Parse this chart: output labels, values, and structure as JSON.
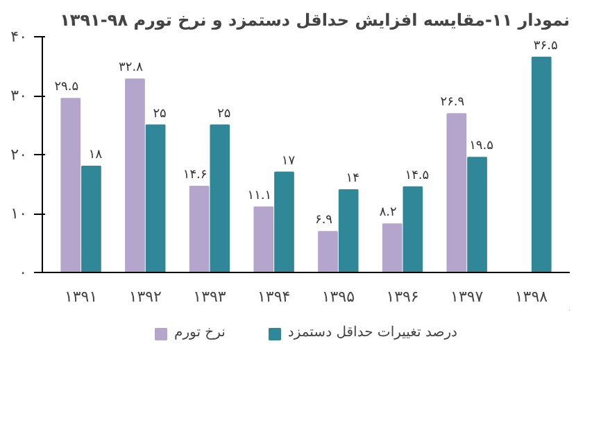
{
  "chart_data": {
    "type": "bar",
    "title": "نمودار ۱۱-مقایسه افزایش حداقل دستمزد و نرخ تورم ۹۸-۱۳۹۱",
    "categories": [
      "۱۳۹۱",
      "۱۳۹۲",
      "۱۳۹۳",
      "۱۳۹۴",
      "۱۳۹۵",
      "۱۳۹۶",
      "۱۳۹۷",
      "۱۳۹۸"
    ],
    "series": [
      {
        "name": "نرخ تورم",
        "color": "#b3a5cb",
        "values": [
          29.5,
          32.8,
          14.6,
          11.1,
          6.9,
          8.2,
          26.9,
          null
        ],
        "value_labels": [
          "۲۹.۵",
          "۳۲.۸",
          "۱۴.۶",
          "۱۱.۱",
          "۶.۹",
          "۸.۲",
          "۲۶.۹",
          null
        ]
      },
      {
        "name": "درصد تغییرات حداقل دستمزد",
        "color": "#2f8797",
        "values": [
          18,
          25,
          25,
          17,
          14,
          14.5,
          19.5,
          36.5
        ],
        "value_labels": [
          "۱۸",
          "۲۵",
          "۲۵",
          "۱۷",
          "۱۴",
          "۱۴.۵",
          "۱۹.۵",
          "۳۶.۵"
        ]
      }
    ],
    "ylim": [
      0,
      40
    ],
    "yticks": [
      {
        "value": 0,
        "label": "۰"
      },
      {
        "value": 10,
        "label": "۱۰"
      },
      {
        "value": 20,
        "label": "۲۰"
      },
      {
        "value": 30,
        "label": "۳۰"
      },
      {
        "value": 40,
        "label": "۴۰"
      }
    ],
    "grid": false,
    "legend": "bottom"
  }
}
